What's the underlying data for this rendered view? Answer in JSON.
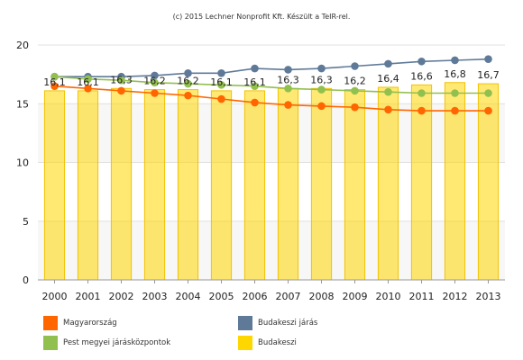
{
  "credit": "(c) 2015 Lechner Nonprofit Kft. Készült a TeIR-rel.",
  "chart_data": {
    "type": "bar",
    "categories": [
      "2000",
      "2001",
      "2002",
      "2003",
      "2004",
      "2005",
      "2006",
      "2007",
      "2008",
      "2009",
      "2010",
      "2011",
      "2012",
      "2013"
    ],
    "ylim": [
      0,
      20
    ],
    "yticks": [
      0,
      5,
      10,
      15,
      20
    ],
    "grid": true,
    "legend_position": "bottom",
    "bar_series": {
      "name": "Budakeszi",
      "color": "#ffd700",
      "values": [
        16.1,
        16.1,
        16.3,
        16.2,
        16.2,
        16.1,
        16.1,
        16.3,
        16.3,
        16.2,
        16.4,
        16.6,
        16.8,
        16.7
      ],
      "labels": [
        "16,1",
        "16,1",
        "16,3",
        "16,2",
        "16,2",
        "16,1",
        "16,1",
        "16,3",
        "16,3",
        "16,2",
        "16,4",
        "16,6",
        "16,8",
        "16,7"
      ]
    },
    "line_series": [
      {
        "name": "Magyarország",
        "color": "#ff6600",
        "values": [
          16.5,
          16.3,
          16.1,
          15.9,
          15.7,
          15.4,
          15.1,
          14.9,
          14.8,
          14.7,
          14.5,
          14.4,
          14.4,
          14.4
        ]
      },
      {
        "name": "Budakeszi járás",
        "color": "#5f7a99",
        "values": [
          17.3,
          17.3,
          17.3,
          17.4,
          17.6,
          17.6,
          18.0,
          17.9,
          18.0,
          18.2,
          18.4,
          18.6,
          18.7,
          18.8
        ]
      },
      {
        "name": "Pest megyei járásközpontok",
        "color": "#92c04f",
        "values": [
          17.3,
          17.1,
          17.0,
          16.8,
          16.7,
          16.6,
          16.5,
          16.3,
          16.2,
          16.1,
          16.0,
          15.9,
          15.9,
          15.9
        ]
      }
    ],
    "legend": [
      {
        "name": "Magyarország",
        "color": "#ff6600"
      },
      {
        "name": "Budakeszi járás",
        "color": "#5f7a99"
      },
      {
        "name": "Pest megyei járásközpontok",
        "color": "#92c04f"
      },
      {
        "name": "Budakeszi",
        "color": "#ffd700"
      }
    ]
  }
}
